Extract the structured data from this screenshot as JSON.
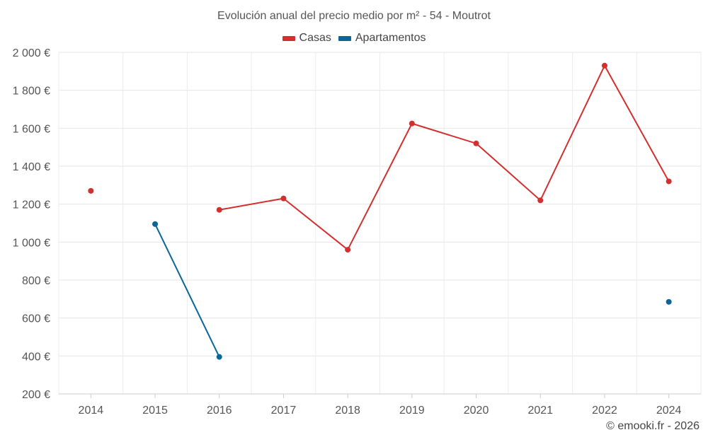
{
  "chart_data": {
    "type": "line",
    "title": "Evolución anual del precio medio por m² - 54 - Moutrot",
    "categories": [
      "2014",
      "2015",
      "2016",
      "2017",
      "2018",
      "2019",
      "2020",
      "2021",
      "2022",
      "2024"
    ],
    "series": [
      {
        "name": "Casas",
        "color": "#d32f2f",
        "values": [
          1270,
          null,
          1170,
          1230,
          960,
          1625,
          1520,
          1220,
          1930,
          1320
        ]
      },
      {
        "name": "Apartamentos",
        "color": "#0a6699",
        "values": [
          null,
          1095,
          395,
          null,
          null,
          null,
          null,
          null,
          null,
          685
        ]
      }
    ],
    "y_ticks": [
      "2 000 €",
      "1 800 €",
      "1 600 €",
      "1 400 €",
      "1 200 €",
      "1 000 €",
      "800 €",
      "600 €",
      "400 €",
      "200 €"
    ],
    "ylim": [
      200,
      2000
    ],
    "y_tick_values": [
      2000,
      1800,
      1600,
      1400,
      1200,
      1000,
      800,
      600,
      400,
      200
    ],
    "grid": true,
    "legend_position": "top-center"
  },
  "credit": "© emooki.fr - 2026"
}
